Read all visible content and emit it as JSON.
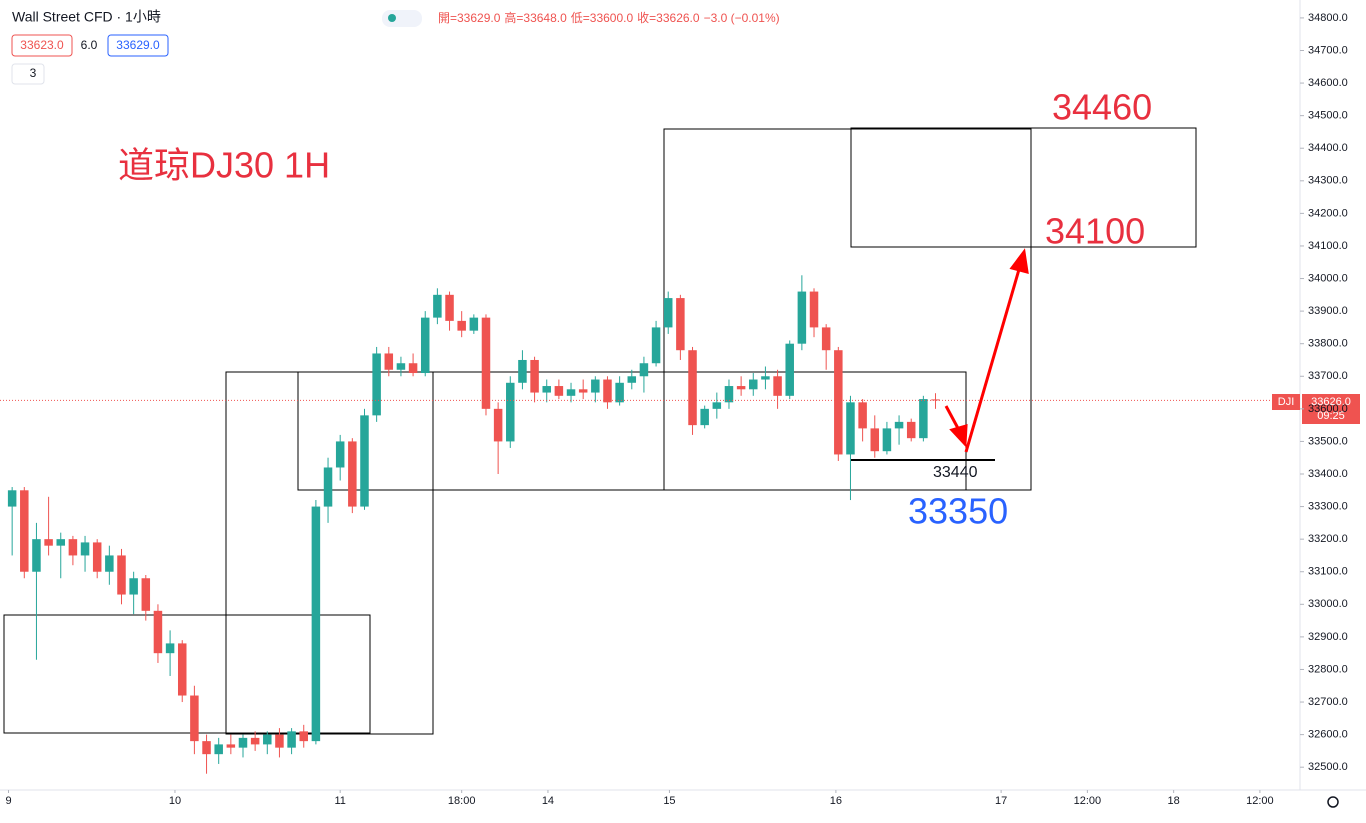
{
  "toolbar": {
    "symbol": "Wall Street CFD · 1小時",
    "bid": "33623.0",
    "spread": "6.0",
    "ask": "33629.0",
    "indicator_count": "3",
    "ohlc_text": [
      "開=33629.0",
      "高=33648.0",
      "低=33600.0",
      "收=33626.0",
      "−3.0 (−0.01%)"
    ]
  },
  "price_label": {
    "symbol": "DJI",
    "price": "33626.0",
    "countdown": "09:25"
  },
  "chart_data": {
    "type": "candlestick",
    "title": "道琼DJ30 1H",
    "up_color": "#26a69a",
    "down_color": "#ef5350",
    "grid": false,
    "annotations": {
      "target_high": "34460",
      "target_low": "34100",
      "support": "33440",
      "stop": "33350"
    },
    "ohlc": [
      [
        33300,
        33360,
        33150,
        33350
      ],
      [
        33350,
        33360,
        33080,
        33100
      ],
      [
        33100,
        33250,
        32830,
        33200
      ],
      [
        33200,
        33330,
        33150,
        33180
      ],
      [
        33180,
        33220,
        33080,
        33200
      ],
      [
        33200,
        33210,
        33120,
        33150
      ],
      [
        33150,
        33210,
        33100,
        33190
      ],
      [
        33190,
        33200,
        33080,
        33100
      ],
      [
        33100,
        33180,
        33060,
        33150
      ],
      [
        33150,
        33170,
        33000,
        33030
      ],
      [
        33030,
        33100,
        32970,
        33080
      ],
      [
        33080,
        33090,
        32950,
        32980
      ],
      [
        32980,
        33000,
        32820,
        32850
      ],
      [
        32850,
        32920,
        32780,
        32880
      ],
      [
        32880,
        32890,
        32700,
        32720
      ],
      [
        32720,
        32750,
        32540,
        32580
      ],
      [
        32580,
        32600,
        32480,
        32540
      ],
      [
        32540,
        32590,
        32510,
        32570
      ],
      [
        32570,
        32600,
        32540,
        32560
      ],
      [
        32560,
        32600,
        32530,
        32590
      ],
      [
        32590,
        32610,
        32550,
        32570
      ],
      [
        32570,
        32610,
        32540,
        32600
      ],
      [
        32600,
        32620,
        32530,
        32560
      ],
      [
        32560,
        32620,
        32540,
        32610
      ],
      [
        32610,
        32630,
        32560,
        32580
      ],
      [
        32580,
        33320,
        32570,
        33300
      ],
      [
        33300,
        33450,
        33250,
        33420
      ],
      [
        33420,
        33520,
        33380,
        33500
      ],
      [
        33500,
        33510,
        33280,
        33300
      ],
      [
        33300,
        33600,
        33290,
        33580
      ],
      [
        33580,
        33790,
        33560,
        33770
      ],
      [
        33770,
        33790,
        33700,
        33720
      ],
      [
        33720,
        33760,
        33700,
        33740
      ],
      [
        33740,
        33770,
        33700,
        33710
      ],
      [
        33710,
        33900,
        33700,
        33880
      ],
      [
        33880,
        33970,
        33860,
        33950
      ],
      [
        33950,
        33960,
        33840,
        33870
      ],
      [
        33870,
        33900,
        33820,
        33840
      ],
      [
        33840,
        33890,
        33830,
        33880
      ],
      [
        33880,
        33890,
        33580,
        33600
      ],
      [
        33600,
        33620,
        33400,
        33500
      ],
      [
        33500,
        33700,
        33480,
        33680
      ],
      [
        33680,
        33780,
        33660,
        33750
      ],
      [
        33750,
        33760,
        33620,
        33650
      ],
      [
        33650,
        33690,
        33620,
        33670
      ],
      [
        33670,
        33690,
        33630,
        33640
      ],
      [
        33640,
        33680,
        33620,
        33660
      ],
      [
        33660,
        33690,
        33630,
        33650
      ],
      [
        33650,
        33700,
        33620,
        33690
      ],
      [
        33690,
        33700,
        33600,
        33620
      ],
      [
        33620,
        33700,
        33610,
        33680
      ],
      [
        33680,
        33720,
        33660,
        33700
      ],
      [
        33700,
        33760,
        33650,
        33740
      ],
      [
        33740,
        33870,
        33730,
        33850
      ],
      [
        33850,
        33960,
        33830,
        33940
      ],
      [
        33940,
        33950,
        33750,
        33780
      ],
      [
        33780,
        33790,
        33520,
        33550
      ],
      [
        33550,
        33610,
        33540,
        33600
      ],
      [
        33600,
        33650,
        33570,
        33620
      ],
      [
        33620,
        33690,
        33600,
        33670
      ],
      [
        33670,
        33700,
        33640,
        33660
      ],
      [
        33660,
        33710,
        33640,
        33690
      ],
      [
        33690,
        33730,
        33660,
        33700
      ],
      [
        33700,
        33720,
        33600,
        33640
      ],
      [
        33640,
        33810,
        33630,
        33800
      ],
      [
        33800,
        34010,
        33780,
        33960
      ],
      [
        33960,
        33970,
        33820,
        33850
      ],
      [
        33850,
        33860,
        33720,
        33780
      ],
      [
        33780,
        33790,
        33440,
        33460
      ],
      [
        33460,
        33640,
        33320,
        33620
      ],
      [
        33620,
        33630,
        33500,
        33540
      ],
      [
        33540,
        33580,
        33450,
        33470
      ],
      [
        33470,
        33560,
        33460,
        33540
      ],
      [
        33540,
        33580,
        33490,
        33560
      ],
      [
        33560,
        33570,
        33500,
        33510
      ],
      [
        33510,
        33640,
        33500,
        33630
      ],
      [
        33629,
        33648,
        33600,
        33626
      ]
    ],
    "xlim": [
      -1,
      106
    ],
    "xticks": [
      {
        "value": -0.3,
        "label": "9"
      },
      {
        "value": 13.4,
        "label": "10"
      },
      {
        "value": 27,
        "label": "11"
      },
      {
        "value": 37,
        "label": "18:00"
      },
      {
        "value": 44.1,
        "label": "14"
      },
      {
        "value": 54.1,
        "label": "15"
      },
      {
        "value": 67.8,
        "label": "16"
      },
      {
        "value": 81.4,
        "label": "17"
      },
      {
        "value": 88.5,
        "label": "12:00"
      },
      {
        "value": 95.6,
        "label": "18"
      },
      {
        "value": 102.7,
        "label": "12:00"
      }
    ],
    "ylim": [
      32430,
      34855
    ],
    "yticks": [
      {
        "value": 32500,
        "label": "32500.0"
      },
      {
        "value": 32600,
        "label": "32600.0"
      },
      {
        "value": 32700,
        "label": "32700.0"
      },
      {
        "value": 32800,
        "label": "32800.0"
      },
      {
        "value": 32900,
        "label": "32900.0"
      },
      {
        "value": 33000,
        "label": "33000.0"
      },
      {
        "value": 33100,
        "label": "33100.0"
      },
      {
        "value": 33200,
        "label": "33200.0"
      },
      {
        "value": 33300,
        "label": "33300.0"
      },
      {
        "value": 33400,
        "label": "33400.0"
      },
      {
        "value": 33500,
        "label": "33500.0"
      },
      {
        "value": 33600,
        "label": "33600.0"
      },
      {
        "value": 33700,
        "label": "33700.0"
      },
      {
        "value": 33800,
        "label": "33800.0"
      },
      {
        "value": 33900,
        "label": "33900.0"
      },
      {
        "value": 34000,
        "label": "34000.0"
      },
      {
        "value": 34100,
        "label": "34100.0"
      },
      {
        "value": 34200,
        "label": "34200.0"
      },
      {
        "value": 34300,
        "label": "34300.0"
      },
      {
        "value": 34400,
        "label": "34400.0"
      },
      {
        "value": 34500,
        "label": "34500.0"
      },
      {
        "value": 34600,
        "label": "34600.0"
      },
      {
        "value": 34700,
        "label": "34700.0"
      },
      {
        "value": 34800,
        "label": "34800.0"
      }
    ]
  }
}
